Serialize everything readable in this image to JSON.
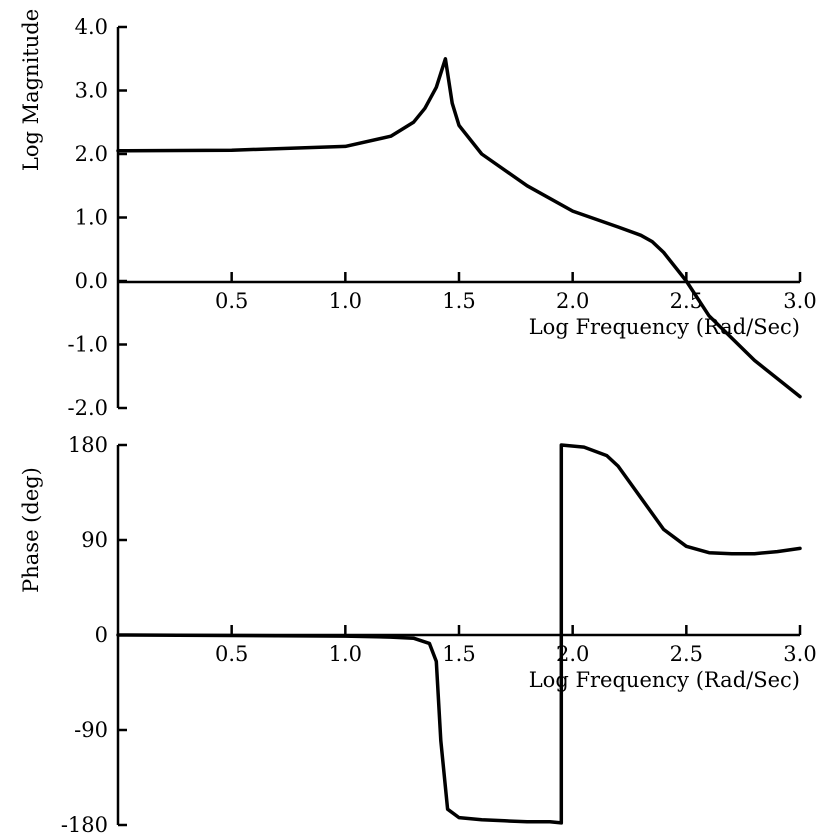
{
  "chart_data": [
    {
      "type": "line",
      "xlabel": "Log Frequency (Rad/Sec)",
      "ylabel": "Log Magnitude",
      "xlim": [
        0,
        3.0
      ],
      "ylim": [
        -2.0,
        4.0
      ],
      "x_ticks": [
        "0.5",
        "1.0",
        "1.5",
        "2.0",
        "2.5",
        "3.0"
      ],
      "y_ticks": [
        "4.0",
        "3.0",
        "2.0",
        "1.0",
        "0.0",
        "-1.0",
        "-2.0"
      ],
      "grid": false,
      "series": [
        {
          "x": [
            0,
            0.5,
            1.0,
            1.2,
            1.3,
            1.35,
            1.4,
            1.44,
            1.47,
            1.5,
            1.6,
            1.8,
            2.0,
            2.2,
            2.3,
            2.35,
            2.4,
            2.5,
            2.6,
            2.8,
            3.0
          ],
          "y": [
            2.05,
            2.06,
            2.12,
            2.28,
            2.5,
            2.72,
            3.05,
            3.5,
            2.8,
            2.45,
            2.0,
            1.5,
            1.1,
            0.85,
            0.72,
            0.62,
            0.45,
            0.0,
            -0.55,
            -1.25,
            -1.82
          ]
        }
      ]
    },
    {
      "type": "line",
      "xlabel": "Log Frequency (Rad/Sec)",
      "ylabel": "Phase (deg)",
      "xlim": [
        0,
        3.0
      ],
      "ylim": [
        -180,
        180
      ],
      "x_ticks": [
        "0.5",
        "1.0",
        "1.5",
        "2.0",
        "2.5",
        "3.0"
      ],
      "y_ticks": [
        "180",
        "90",
        "0",
        "-90",
        "-180"
      ],
      "grid": false,
      "series": [
        {
          "x": [
            0,
            1.0,
            1.2,
            1.3,
            1.37,
            1.4,
            1.42,
            1.45,
            1.5,
            1.6,
            1.7,
            1.8,
            1.9,
            1.95,
            1.95,
            2.05,
            2.15,
            2.2,
            2.3,
            2.4,
            2.5,
            2.6,
            2.7,
            2.8,
            2.9,
            3.0
          ],
          "y": [
            0,
            -1,
            -2,
            -3,
            -8,
            -25,
            -100,
            -165,
            -173,
            -175,
            -176,
            -177,
            -177,
            -178,
            180,
            178,
            170,
            160,
            130,
            100,
            84,
            78,
            77,
            77,
            79,
            82
          ]
        }
      ]
    }
  ]
}
